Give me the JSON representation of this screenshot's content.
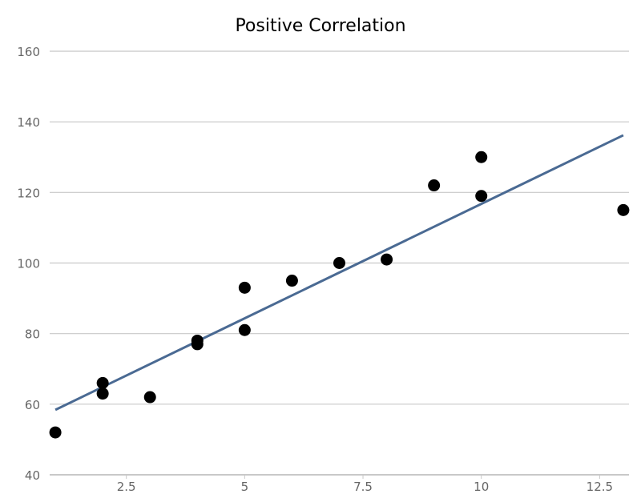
{
  "chart_data": {
    "type": "scatter",
    "title": "Positive Correlation",
    "xlabel": "",
    "ylabel": "",
    "xlim": [
      0.88,
      13.12
    ],
    "ylim": [
      40,
      160
    ],
    "x_ticks": [
      2.5,
      5,
      7.5,
      10,
      12.5
    ],
    "x_tick_labels": [
      "2.5",
      "5",
      "7.5",
      "10",
      "12.5"
    ],
    "y_ticks": [
      40,
      60,
      80,
      100,
      120,
      140,
      160
    ],
    "y_tick_labels": [
      "40",
      "60",
      "80",
      "100",
      "120",
      "140",
      "160"
    ],
    "grid": "horizontal",
    "legend": "none",
    "series": [
      {
        "type": "scatter",
        "color": "#000000",
        "points": [
          [
            1,
            52
          ],
          [
            2,
            66
          ],
          [
            2,
            63
          ],
          [
            3,
            62
          ],
          [
            4,
            78
          ],
          [
            4,
            77
          ],
          [
            5,
            93
          ],
          [
            5,
            81
          ],
          [
            6,
            95
          ],
          [
            7,
            100
          ],
          [
            8,
            101
          ],
          [
            9,
            122
          ],
          [
            10,
            130
          ],
          [
            10,
            119
          ],
          [
            13,
            115
          ]
        ]
      },
      {
        "type": "line",
        "color": "#4a6a93",
        "points": [
          [
            1,
            58.4
          ],
          [
            13,
            136.2
          ]
        ]
      }
    ],
    "colors": {
      "grid": "#c8c8c8",
      "axis_text": "#666666",
      "title": "#000000"
    }
  }
}
